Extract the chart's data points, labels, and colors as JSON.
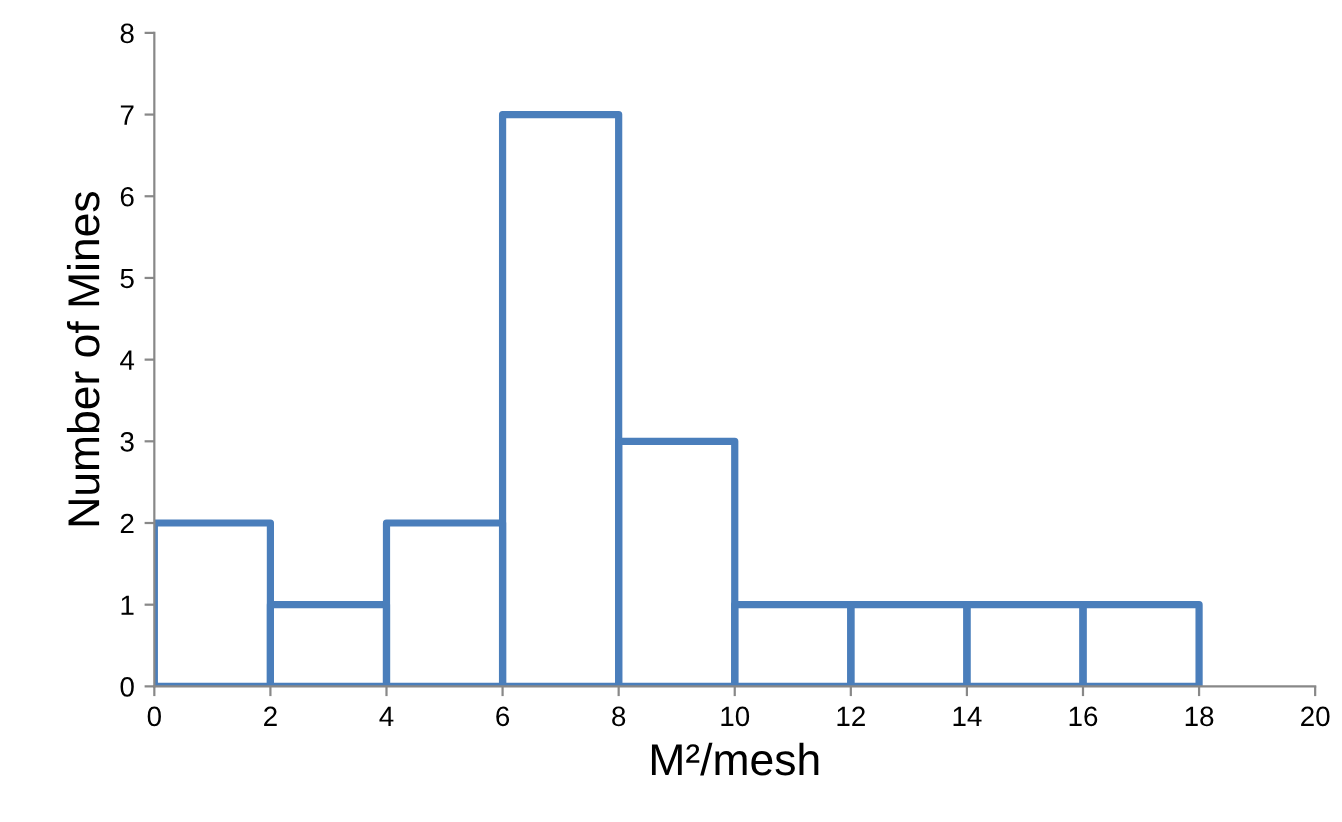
{
  "chart_data": {
    "type": "histogram",
    "xlabel": "M²/mesh",
    "ylabel": "Number of Mines",
    "bins": [
      0,
      2,
      4,
      6,
      8,
      10,
      12,
      14,
      16,
      18
    ],
    "values": [
      2,
      1,
      2,
      7,
      3,
      1,
      1,
      1,
      1
    ],
    "color": "#4a7ebb",
    "xlim": [
      0,
      20
    ],
    "xticks": [
      0,
      2,
      4,
      6,
      8,
      10,
      12,
      14,
      16,
      18,
      20
    ],
    "ylim": [
      0,
      8
    ],
    "yticks": [
      0,
      1,
      2,
      3,
      4,
      5,
      6,
      7,
      8
    ],
    "grid": false
  }
}
